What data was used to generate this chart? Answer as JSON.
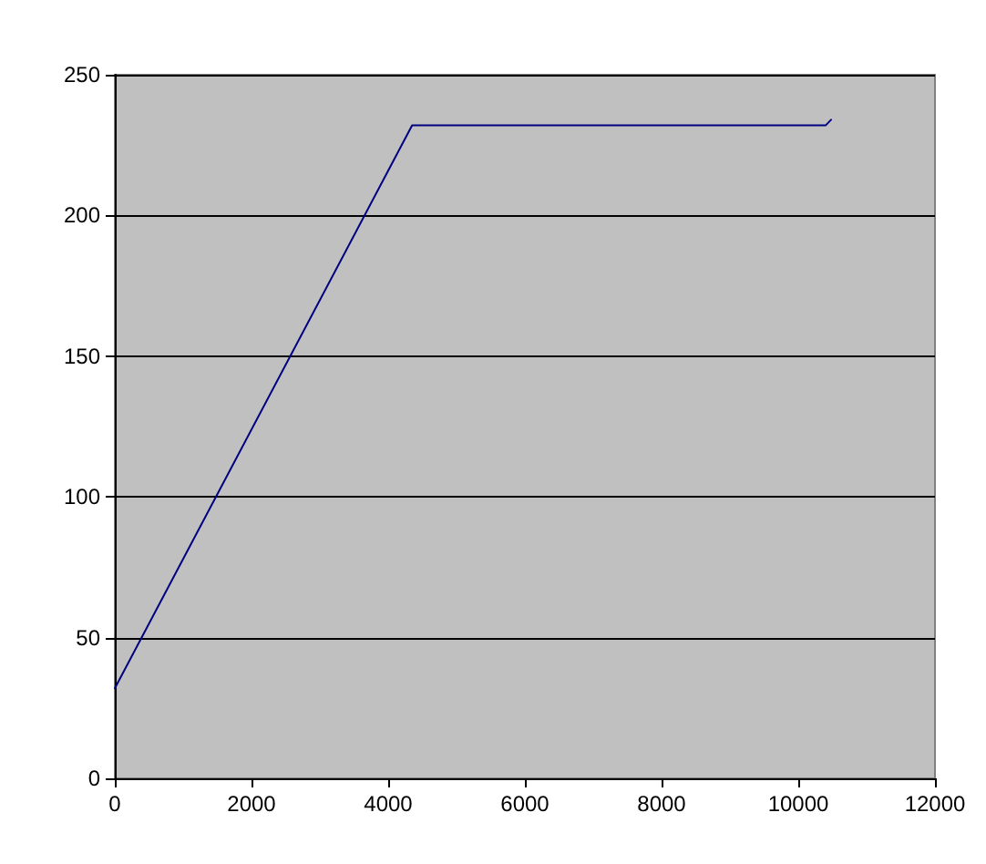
{
  "chart_data": {
    "type": "line",
    "x": [
      0,
      4350,
      10400,
      10480
    ],
    "series": [
      {
        "color": "#000080",
        "values": [
          32,
          232,
          232,
          234
        ]
      }
    ],
    "xlim": [
      0,
      12000
    ],
    "xticks": [
      0,
      2000,
      4000,
      6000,
      8000,
      10000,
      12000
    ],
    "ylim": [
      0,
      250
    ],
    "yticks": [
      0,
      50,
      100,
      150,
      200,
      250
    ],
    "grid": "y",
    "marker": "none",
    "line_style": "solid"
  }
}
